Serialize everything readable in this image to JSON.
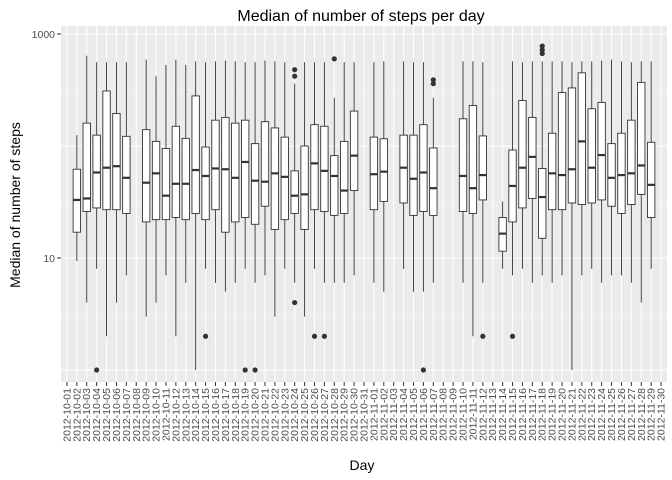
{
  "chart_data": {
    "type": "boxplot",
    "title": "Median of number of steps per day",
    "xlabel": "Day",
    "ylabel": "Median of number of steps",
    "y_scale": "log10",
    "ylim": [
      1,
      1000
    ],
    "y_ticks": [
      {
        "value": 10,
        "label": "10"
      },
      {
        "value": 1000,
        "label": "1000"
      }
    ],
    "grid": true,
    "background": "#ebebeb",
    "categories": [
      "2012-10-01",
      "2012-10-02",
      "2012-10-03",
      "2012-10-04",
      "2012-10-05",
      "2012-10-06",
      "2012-10-07",
      "2012-10-08",
      "2012-10-09",
      "2012-10-10",
      "2012-10-11",
      "2012-10-12",
      "2012-10-13",
      "2012-10-14",
      "2012-10-15",
      "2012-10-16",
      "2012-10-17",
      "2012-10-18",
      "2012-10-19",
      "2012-10-20",
      "2012-10-21",
      "2012-10-22",
      "2012-10-23",
      "2012-10-24",
      "2012-10-25",
      "2012-10-26",
      "2012-10-27",
      "2012-10-28",
      "2012-10-29",
      "2012-10-30",
      "2012-10-31",
      "2012-11-01",
      "2012-11-02",
      "2012-11-03",
      "2012-11-04",
      "2012-11-05",
      "2012-11-06",
      "2012-11-07",
      "2012-11-08",
      "2012-11-09",
      "2012-11-10",
      "2012-11-11",
      "2012-11-12",
      "2012-11-13",
      "2012-11-14",
      "2012-11-15",
      "2012-11-16",
      "2012-11-17",
      "2012-11-18",
      "2012-11-19",
      "2012-11-20",
      "2012-11-21",
      "2012-11-22",
      "2012-11-23",
      "2012-11-24",
      "2012-11-25",
      "2012-11-26",
      "2012-11-27",
      "2012-11-28",
      "2012-11-29",
      "2012-11-30"
    ],
    "boxes": [
      null,
      {
        "lo": 9.4,
        "q1": 17,
        "med": 33,
        "q3": 62,
        "hi": 125,
        "out": []
      },
      {
        "lo": 4,
        "q1": 26,
        "med": 34,
        "q3": 160,
        "hi": 640,
        "out": []
      },
      {
        "lo": 8,
        "q1": 28,
        "med": 58,
        "q3": 125,
        "hi": 560,
        "out": [
          1
        ]
      },
      {
        "lo": 2,
        "q1": 27,
        "med": 64,
        "q3": 310,
        "hi": 560,
        "out": []
      },
      {
        "lo": 4,
        "q1": 27,
        "med": 66,
        "q3": 195,
        "hi": 560,
        "out": []
      },
      {
        "lo": 7,
        "q1": 25,
        "med": 52,
        "q3": 122,
        "hi": 560,
        "out": []
      },
      null,
      {
        "lo": 3,
        "q1": 21,
        "med": 47,
        "q3": 140,
        "hi": 590,
        "out": []
      },
      {
        "lo": 4,
        "q1": 22,
        "med": 57,
        "q3": 110,
        "hi": 420,
        "out": []
      },
      {
        "lo": 7,
        "q1": 22,
        "med": 36,
        "q3": 95,
        "hi": 530,
        "out": []
      },
      {
        "lo": 2,
        "q1": 23,
        "med": 46,
        "q3": 150,
        "hi": 590,
        "out": []
      },
      {
        "lo": 6,
        "q1": 22,
        "med": 46,
        "q3": 117,
        "hi": 530,
        "out": []
      },
      {
        "lo": 1,
        "q1": 25,
        "med": 61,
        "q3": 280,
        "hi": 570,
        "out": []
      },
      {
        "lo": 8,
        "q1": 22,
        "med": 54,
        "q3": 98,
        "hi": 560,
        "out": [
          2
        ]
      },
      {
        "lo": 6,
        "q1": 27,
        "med": 63,
        "q3": 170,
        "hi": 570,
        "out": []
      },
      {
        "lo": 5,
        "q1": 17,
        "med": 62,
        "q3": 180,
        "hi": 580,
        "out": []
      },
      {
        "lo": 6,
        "q1": 21,
        "med": 52,
        "q3": 160,
        "hi": 570,
        "out": []
      },
      {
        "lo": 8,
        "q1": 23,
        "med": 72,
        "q3": 170,
        "hi": 560,
        "out": [
          1
        ]
      },
      {
        "lo": 6,
        "q1": 20,
        "med": 49,
        "q3": 105,
        "hi": 560,
        "out": [
          1
        ]
      },
      {
        "lo": 7,
        "q1": 29,
        "med": 48,
        "q3": 165,
        "hi": 580,
        "out": []
      },
      {
        "lo": 3,
        "q1": 18,
        "med": 57,
        "q3": 145,
        "hi": 570,
        "out": []
      },
      {
        "lo": 8,
        "q1": 22,
        "med": 53,
        "q3": 120,
        "hi": 560,
        "out": []
      },
      {
        "lo": 6,
        "q1": 25,
        "med": 36,
        "q3": 60,
        "hi": 360,
        "out": [
          4,
          420,
          480
        ]
      },
      {
        "lo": 3,
        "q1": 18,
        "med": 37,
        "q3": 100,
        "hi": 560,
        "out": []
      },
      {
        "lo": 8,
        "q1": 27,
        "med": 70,
        "q3": 155,
        "hi": 560,
        "out": [
          2
        ]
      },
      {
        "lo": 6,
        "q1": 26,
        "med": 60,
        "q3": 150,
        "hi": 560,
        "out": [
          2
        ]
      },
      {
        "lo": 6,
        "q1": 24,
        "med": 54,
        "q3": 82,
        "hi": 270,
        "out": [
          600
        ]
      },
      {
        "lo": 6,
        "q1": 25,
        "med": 40,
        "q3": 110,
        "hi": 560,
        "out": []
      },
      {
        "lo": 7,
        "q1": 40,
        "med": 82,
        "q3": 205,
        "hi": 560,
        "out": []
      },
      null,
      {
        "lo": 6,
        "q1": 27,
        "med": 56,
        "q3": 120,
        "hi": 560,
        "out": []
      },
      {
        "lo": 5,
        "q1": 32,
        "med": 59,
        "q3": 116,
        "hi": 570,
        "out": []
      },
      null,
      {
        "lo": 8,
        "q1": 31,
        "med": 64,
        "q3": 125,
        "hi": 570,
        "out": []
      },
      {
        "lo": 5,
        "q1": 24,
        "med": 51,
        "q3": 125,
        "hi": 560,
        "out": []
      },
      {
        "lo": 5,
        "q1": 26,
        "med": 58,
        "q3": 155,
        "hi": 560,
        "out": [
          1
        ]
      },
      {
        "lo": 6,
        "q1": 24,
        "med": 42,
        "q3": 96,
        "hi": 270,
        "out": [
          360,
          390
        ]
      },
      null,
      null,
      {
        "lo": 6,
        "q1": 26,
        "med": 54,
        "q3": 175,
        "hi": 570,
        "out": []
      },
      {
        "lo": 2,
        "q1": 25,
        "med": 42,
        "q3": 230,
        "hi": 570,
        "out": []
      },
      {
        "lo": 6,
        "q1": 33,
        "med": 55,
        "q3": 123,
        "hi": 560,
        "out": [
          2
        ]
      },
      null,
      {
        "lo": 8,
        "q1": 11.5,
        "med": 16.5,
        "q3": 23,
        "hi": 32,
        "out": []
      },
      {
        "lo": 7,
        "q1": 21,
        "med": 44,
        "q3": 92,
        "hi": 570,
        "out": [
          2
        ]
      },
      {
        "lo": 8,
        "q1": 28,
        "med": 64,
        "q3": 255,
        "hi": 560,
        "out": []
      },
      {
        "lo": 6,
        "q1": 34,
        "med": 80,
        "q3": 180,
        "hi": 570,
        "out": []
      },
      {
        "lo": 7,
        "q1": 15,
        "med": 35,
        "q3": 63,
        "hi": 570,
        "out": [
          670,
          720,
          780
        ]
      },
      {
        "lo": 6,
        "q1": 27,
        "med": 57,
        "q3": 130,
        "hi": 570,
        "out": []
      },
      {
        "lo": 7,
        "q1": 27,
        "med": 55,
        "q3": 300,
        "hi": 570,
        "out": []
      },
      {
        "lo": 1,
        "q1": 31,
        "med": 62,
        "q3": 330,
        "hi": 560,
        "out": []
      },
      {
        "lo": 7,
        "q1": 30,
        "med": 110,
        "q3": 450,
        "hi": 570,
        "out": []
      },
      {
        "lo": 8,
        "q1": 31,
        "med": 64,
        "q3": 215,
        "hi": 570,
        "out": []
      },
      {
        "lo": 6,
        "q1": 33,
        "med": 83,
        "q3": 245,
        "hi": 580,
        "out": []
      },
      {
        "lo": 7,
        "q1": 29,
        "med": 52,
        "q3": 105,
        "hi": 590,
        "out": []
      },
      {
        "lo": 7,
        "q1": 25,
        "med": 55,
        "q3": 130,
        "hi": 570,
        "out": []
      },
      {
        "lo": 6,
        "q1": 30,
        "med": 57,
        "q3": 170,
        "hi": 560,
        "out": []
      },
      {
        "lo": 4,
        "q1": 37,
        "med": 67,
        "q3": 370,
        "hi": 570,
        "out": []
      },
      {
        "lo": 8,
        "q1": 23,
        "med": 45,
        "q3": 108,
        "hi": 570,
        "out": []
      },
      null
    ]
  }
}
